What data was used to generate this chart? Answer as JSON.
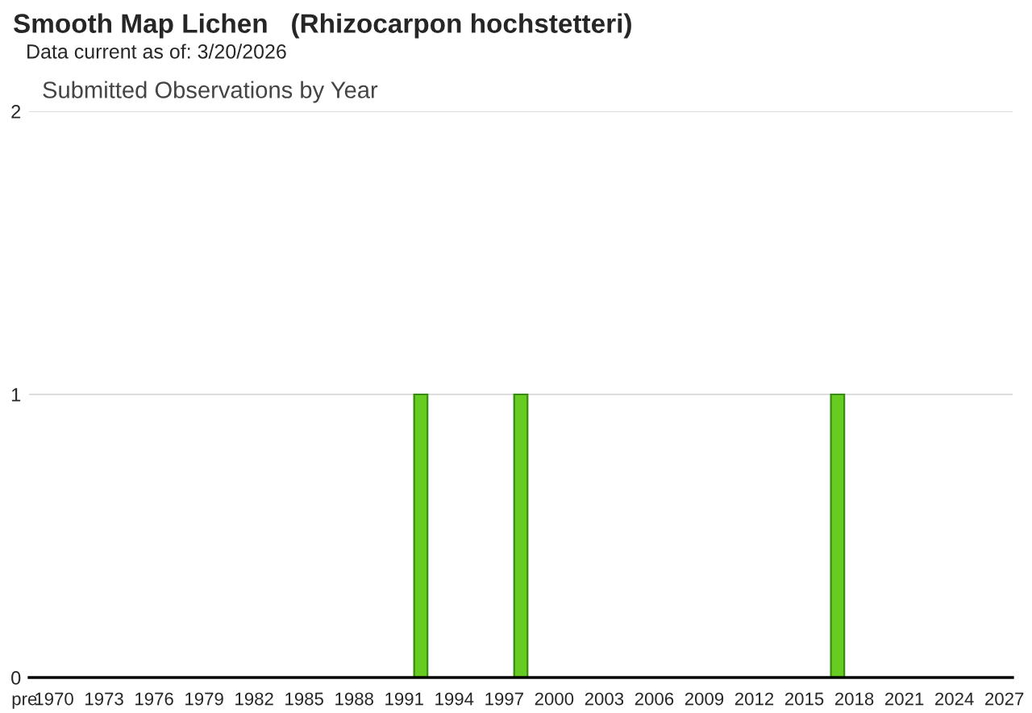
{
  "chart_data": {
    "type": "bar",
    "title": "Smooth Map Lichen   (Rhizocarpon hochstetteri)",
    "subtitle": "Data current as of: 3/20/2026",
    "annotations": [
      "Submitted Observations by Year"
    ],
    "categories": [
      "pre",
      "1970",
      null,
      null,
      "1973",
      null,
      null,
      "1976",
      null,
      null,
      "1979",
      null,
      null,
      "1982",
      null,
      null,
      "1985",
      null,
      null,
      "1988",
      null,
      null,
      "1991",
      null,
      null,
      "1994",
      null,
      null,
      "1997",
      null,
      null,
      "2000",
      null,
      null,
      "2003",
      null,
      null,
      "2006",
      null,
      null,
      "2009",
      null,
      null,
      "2012",
      null,
      null,
      "2015",
      null,
      null,
      "2018",
      null,
      null,
      "2021",
      null,
      null,
      "2024",
      null,
      null,
      "2027"
    ],
    "series": [
      {
        "color": "#66cc22",
        "values": [
          0,
          0,
          0,
          0,
          0,
          0,
          0,
          0,
          0,
          0,
          0,
          0,
          0,
          0,
          0,
          0,
          0,
          0,
          0,
          0,
          0,
          0,
          0,
          1,
          0,
          0,
          0,
          0,
          0,
          1,
          0,
          0,
          0,
          0,
          0,
          0,
          0,
          0,
          0,
          0,
          0,
          0,
          0,
          0,
          0,
          0,
          0,
          0,
          1,
          0,
          0,
          0,
          0,
          0,
          0,
          0,
          0,
          0,
          0
        ]
      }
    ],
    "ylim": [
      0,
      2
    ],
    "yticks": [
      0,
      1,
      2
    ],
    "grid": "y",
    "legend": false
  }
}
